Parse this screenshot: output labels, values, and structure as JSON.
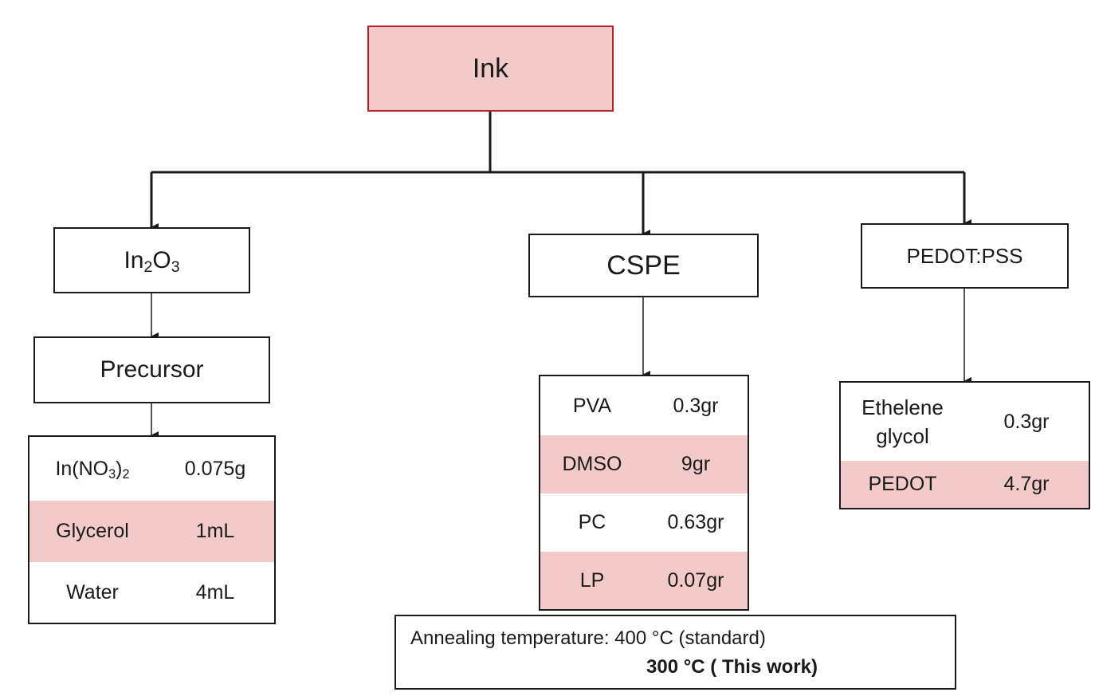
{
  "root": {
    "label": "Ink"
  },
  "branches": {
    "in2o3": {
      "label_base": "In",
      "label_sub1": "2",
      "label_mid": "O",
      "label_sub2": "3",
      "step": "Precursor",
      "rows": [
        {
          "name_base": "In(NO",
          "name_sub": "3",
          "name_close": ")",
          "name_sub2": "2",
          "amount": "0.075g"
        },
        {
          "name": "Glycerol",
          "amount": "1mL"
        },
        {
          "name": "Water",
          "amount": "4mL"
        }
      ]
    },
    "cspe": {
      "label": "CSPE",
      "rows": [
        {
          "name": "PVA",
          "amount": "0.3gr"
        },
        {
          "name": "DMSO",
          "amount": "9gr"
        },
        {
          "name": "PC",
          "amount": "0.63gr"
        },
        {
          "name": "LP",
          "amount": "0.07gr"
        }
      ]
    },
    "pedot": {
      "label": "PEDOT:PSS",
      "rows": [
        {
          "name_line1": "Ethelene",
          "name_line2": "glycol",
          "amount": "0.3gr"
        },
        {
          "name": "PEDOT",
          "amount": "4.7gr"
        }
      ]
    }
  },
  "annealing": {
    "line1": "Annealing temperature: 400 °C (standard)",
    "line2": "300 °C ( This work)"
  },
  "colors": {
    "root_fill": "#f2caca",
    "root_border": "#b01e2a",
    "row_shade": "#f2caca",
    "line": "#1a1a1a"
  }
}
